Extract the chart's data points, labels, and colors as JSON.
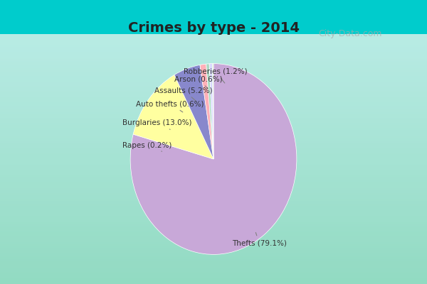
{
  "title": "Crimes by type - 2014",
  "categories": [
    "Thefts",
    "Burglaries",
    "Assaults",
    "Robberies",
    "Auto thefts",
    "Arson",
    "Rapes"
  ],
  "percentages": [
    79.1,
    13.0,
    5.2,
    1.2,
    0.6,
    0.6,
    0.2
  ],
  "colors": [
    "#C8A8D8",
    "#FFFFA0",
    "#8888CC",
    "#FFB0B8",
    "#A8D8C0",
    "#D8D8FF",
    "#C8E8C8"
  ],
  "background_top": "#00CCCC",
  "background_main": "#C8E8D0",
  "title_color": "#222222",
  "label_color": "#333333",
  "watermark": "City-Data.com"
}
